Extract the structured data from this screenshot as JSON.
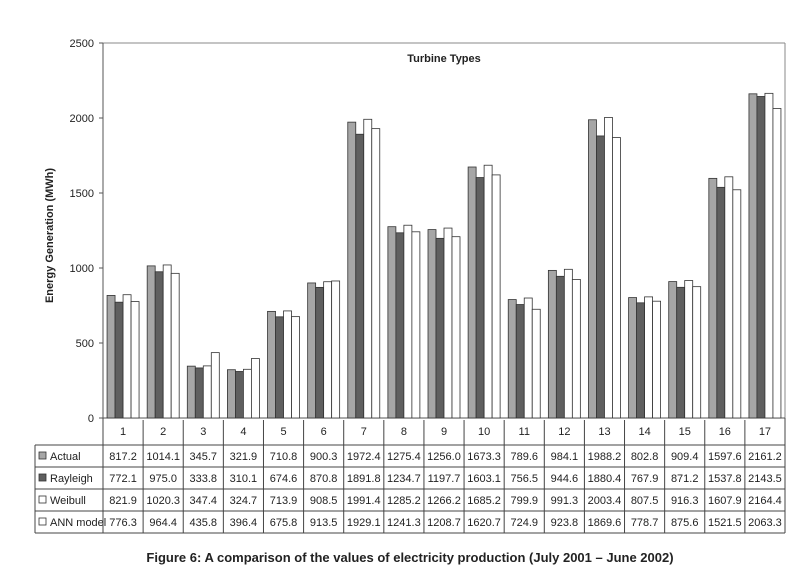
{
  "chart_data": {
    "type": "bar",
    "title": "Turbine Types",
    "ylabel": "Energy Generation (MWh)",
    "xlabel": "",
    "ylim": [
      0,
      2500
    ],
    "yticks": [
      0,
      500,
      1000,
      1500,
      2000,
      2500
    ],
    "categories": [
      "1",
      "2",
      "3",
      "4",
      "5",
      "6",
      "7",
      "8",
      "9",
      "10",
      "11",
      "12",
      "13",
      "14",
      "15",
      "16",
      "17"
    ],
    "series": [
      {
        "name": "Actual",
        "color": "#a6a6a6",
        "values": [
          "817.2",
          "1014.1",
          "345.7",
          "321.9",
          "710.8",
          "900.3",
          "1972.4",
          "1275.4",
          "1256.0",
          "1673.3",
          "789.6",
          "984.1",
          "1988.2",
          "802.8",
          "909.4",
          "1597.6",
          "2161.2"
        ]
      },
      {
        "name": "Rayleigh",
        "color": "#5f5f5f",
        "values": [
          "772.1",
          "975.0",
          "333.8",
          "310.1",
          "674.6",
          "870.8",
          "1891.8",
          "1234.7",
          "1197.7",
          "1603.1",
          "756.5",
          "944.6",
          "1880.4",
          "767.9",
          "871.2",
          "1537.8",
          "2143.5"
        ]
      },
      {
        "name": "Weibull",
        "color": "#ffffff",
        "values": [
          "821.9",
          "1020.3",
          "347.4",
          "324.7",
          "713.9",
          "908.5",
          "1991.4",
          "1285.2",
          "1266.2",
          "1685.2",
          "799.9",
          "991.3",
          "2003.4",
          "807.5",
          "916.3",
          "1607.9",
          "2164.4"
        ]
      },
      {
        "name": "ANN model",
        "color": "#ffffff",
        "values": [
          "776.3",
          "964.4",
          "435.8",
          "396.4",
          "675.8",
          "913.5",
          "1929.1",
          "1241.3",
          "1208.7",
          "1620.7",
          "724.9",
          "923.8",
          "1869.6",
          "778.7",
          "875.6",
          "1521.5",
          "2063.3"
        ]
      }
    ],
    "legend": "table-below",
    "grid": false
  },
  "caption": "Figure 6: A comparison of the values of electricity production (July 2001 – June 2002)"
}
